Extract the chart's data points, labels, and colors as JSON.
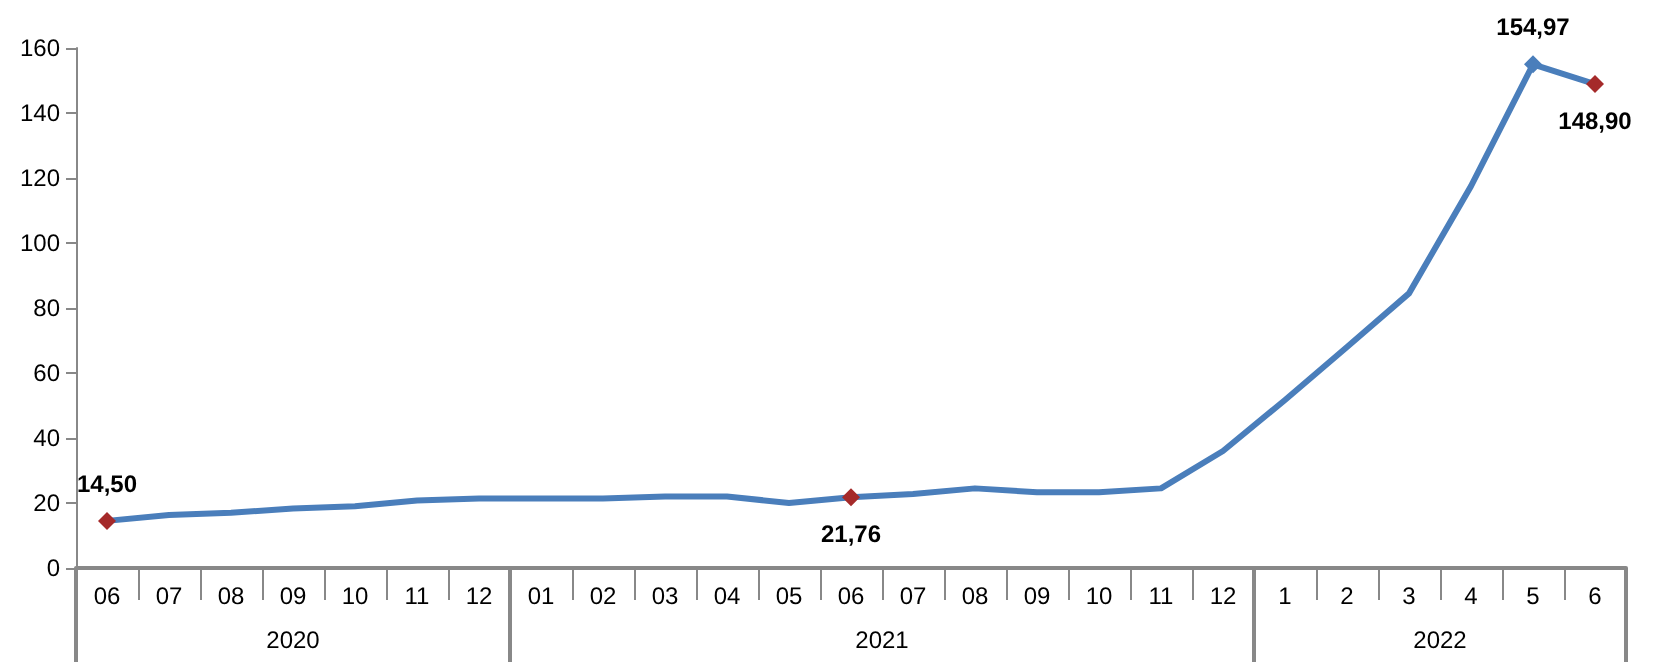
{
  "chart_data": {
    "type": "line",
    "categories": [
      "06",
      "07",
      "08",
      "09",
      "10",
      "11",
      "12",
      "01",
      "02",
      "03",
      "04",
      "05",
      "06",
      "07",
      "08",
      "09",
      "10",
      "11",
      "12",
      "1",
      "2",
      "3",
      "4",
      "5",
      "6"
    ],
    "series": [
      {
        "color": "#4a7ebb",
        "values": [
          14.5,
          16.3,
          17,
          18.3,
          19,
          20.8,
          21.4,
          21.4,
          21.4,
          22,
          22,
          20,
          21.76,
          22.8,
          24.5,
          23.3,
          23.3,
          24.5,
          36,
          51.7,
          68,
          84.5,
          117.5,
          154.97,
          148.9
        ],
        "value_labels": [
          "14,50",
          null,
          null,
          null,
          null,
          null,
          null,
          null,
          null,
          null,
          null,
          null,
          "21,76",
          null,
          null,
          null,
          null,
          null,
          null,
          null,
          null,
          null,
          null,
          "154,97",
          "148,90"
        ],
        "colors": [
          "#a52a2a",
          null,
          null,
          null,
          null,
          null,
          null,
          null,
          null,
          null,
          null,
          null,
          "#a52a2a",
          null,
          null,
          null,
          null,
          null,
          null,
          null,
          null,
          null,
          null,
          "#4a7ebb",
          "#a52a2a"
        ]
      }
    ],
    "annotations": [
      "2020",
      "2021",
      "2022"
    ],
    "ylim": [
      0,
      160
    ],
    "yticks": [
      0,
      20,
      40,
      60,
      80,
      100,
      120,
      140,
      160
    ],
    "grid": false,
    "line_style": "solid"
  }
}
